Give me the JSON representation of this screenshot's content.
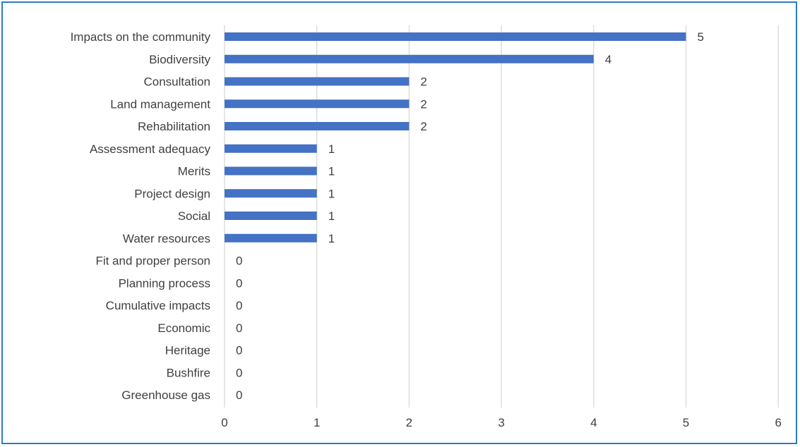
{
  "chart_data": {
    "type": "bar",
    "orientation": "horizontal",
    "title": "",
    "xlabel": "",
    "ylabel": "",
    "categories": [
      "Impacts on the community",
      "Biodiversity",
      "Consultation",
      "Land management",
      "Rehabilitation",
      "Assessment adequacy",
      "Merits",
      "Project design",
      "Social",
      "Water resources",
      "Fit and proper person",
      "Planning process",
      "Cumulative impacts",
      "Economic",
      "Heritage",
      "Bushfire",
      "Greenhouse gas"
    ],
    "values": [
      5,
      4,
      2,
      2,
      2,
      1,
      1,
      1,
      1,
      1,
      0,
      0,
      0,
      0,
      0,
      0,
      0
    ],
    "data_labels": [
      "5",
      "4",
      "2",
      "2",
      "2",
      "1",
      "1",
      "1",
      "1",
      "1",
      "0",
      "0",
      "0",
      "0",
      "0",
      "0",
      "0"
    ],
    "xlim": [
      0,
      6
    ],
    "x_ticks": [
      0,
      1,
      2,
      3,
      4,
      5,
      6
    ],
    "x_tick_labels": [
      "0",
      "1",
      "2",
      "3",
      "4",
      "5",
      "6"
    ],
    "grid": "vertical",
    "legend": "none",
    "colors": {
      "bar": "#4472c4",
      "grid": "#d9d9d9",
      "border": "#2f7cc0",
      "text": "#404040"
    }
  }
}
